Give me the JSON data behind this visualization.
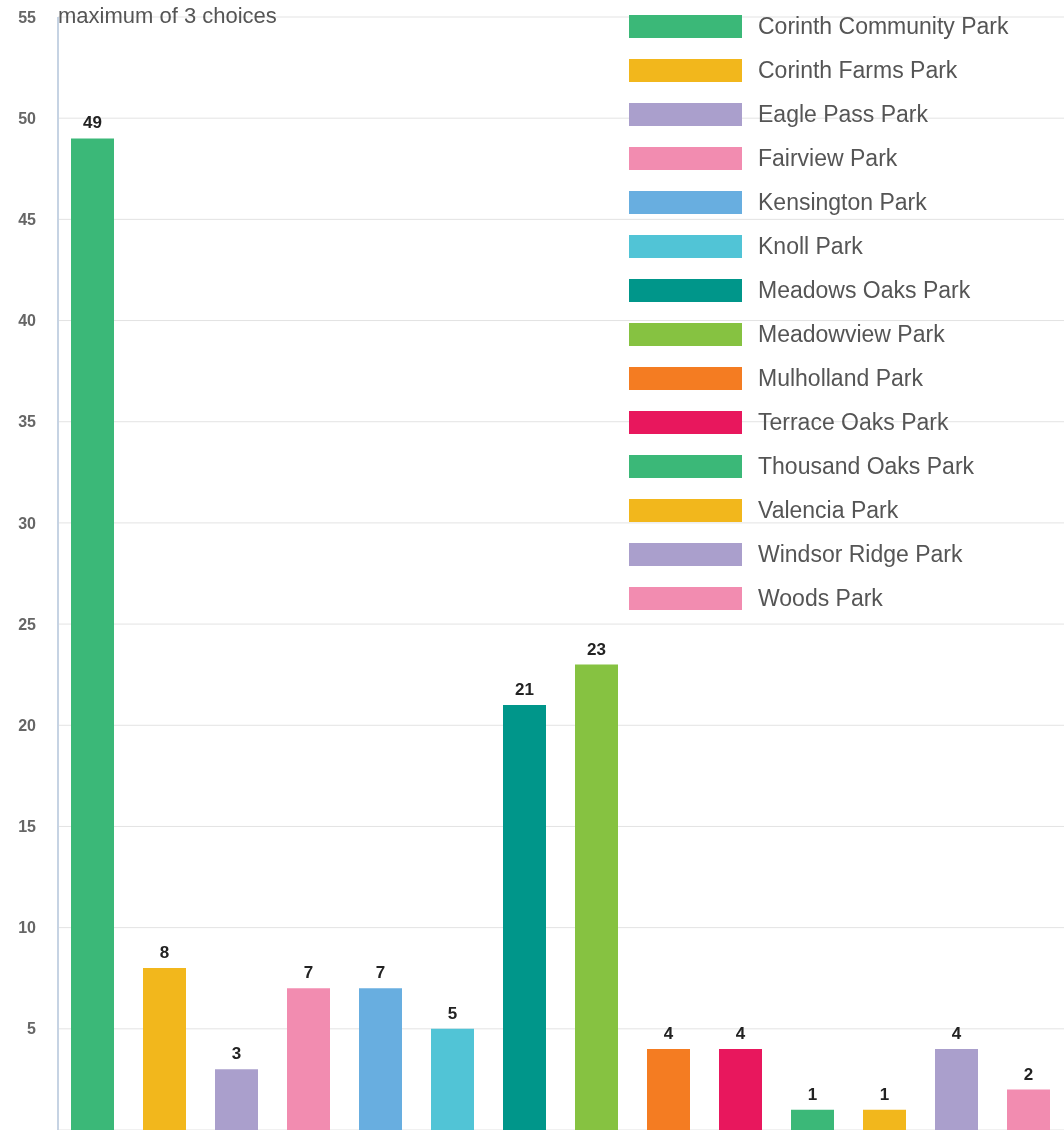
{
  "chart_data": {
    "type": "bar",
    "title": "maximum of 3 choices",
    "categories": [
      null
    ],
    "series": [
      {
        "name": "Corinth Community Park",
        "color": "#3bb878",
        "values": [
          49
        ]
      },
      {
        "name": "Corinth Farms Park",
        "color": "#f2b71c",
        "values": [
          8
        ]
      },
      {
        "name": "Eagle Pass Park",
        "color": "#aa9fcc",
        "values": [
          3
        ]
      },
      {
        "name": "Fairview Park",
        "color": "#f28cb0",
        "values": [
          7
        ]
      },
      {
        "name": "Kensington Park",
        "color": "#68aee0",
        "values": [
          7
        ]
      },
      {
        "name": "Knoll Park",
        "color": "#51c4d6",
        "values": [
          5
        ]
      },
      {
        "name": "Meadows Oaks Park",
        "color": "#00968a",
        "values": [
          21
        ]
      },
      {
        "name": "Meadowview Park",
        "color": "#86c241",
        "values": [
          23
        ]
      },
      {
        "name": "Mulholland Park",
        "color": "#f47c22",
        "values": [
          4
        ]
      },
      {
        "name": "Terrace Oaks Park",
        "color": "#e8175d",
        "values": [
          4
        ]
      },
      {
        "name": "Thousand Oaks Park",
        "color": "#3bb878",
        "values": [
          1
        ]
      },
      {
        "name": "Valencia Park",
        "color": "#f2b71c",
        "values": [
          1
        ]
      },
      {
        "name": "Windsor Ridge Park",
        "color": "#aa9fcc",
        "values": [
          4
        ]
      },
      {
        "name": "Woods Park",
        "color": "#f28cb0",
        "values": [
          2
        ]
      }
    ],
    "ylim": [
      0,
      55
    ],
    "yticks": [
      5,
      10,
      15,
      20,
      25,
      30,
      35,
      40,
      45,
      50,
      55
    ],
    "grid": "y",
    "legend": "top right",
    "data_labels": true,
    "tick_labels": "y"
  }
}
